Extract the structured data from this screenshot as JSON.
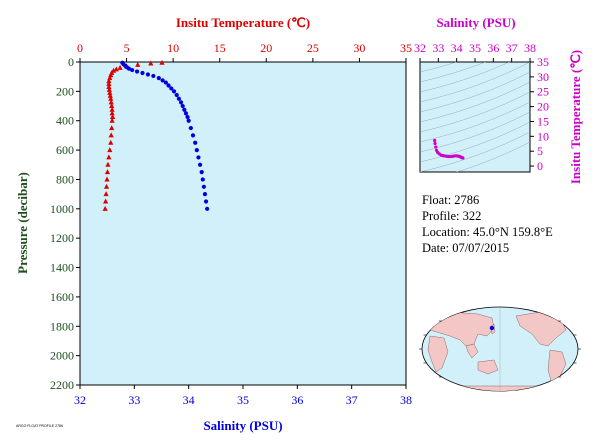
{
  "colors": {
    "temperature": "#dd0000",
    "salinity": "#0000dd",
    "ts_axis": "#cc00cc",
    "plot_bg": "#d2f0fa",
    "pressure_axis": "#1e4d1e"
  },
  "chart_data": [
    {
      "type": "scatter",
      "title": "",
      "ylabel": "Pressure (decibar)",
      "yticks": [
        0,
        200,
        400,
        600,
        800,
        1000,
        1200,
        1400,
        1600,
        1800,
        2000,
        2200
      ],
      "ylim": [
        0,
        2200
      ],
      "y_inverted": true,
      "top_axis": {
        "label": "Insitu Temperature (℃)",
        "range": [
          0,
          35
        ],
        "ticks": [
          0,
          5,
          10,
          15,
          20,
          25,
          30,
          35
        ]
      },
      "bottom_axis": {
        "label": "Salinity (PSU)",
        "range": [
          32,
          38
        ],
        "ticks": [
          32,
          33,
          34,
          35,
          36,
          37,
          38
        ]
      },
      "grid": false,
      "series": [
        {
          "variable": "temperature",
          "marker": "triangle",
          "points": [
            [
              8.8,
              5
            ],
            [
              7.6,
              10
            ],
            [
              6.2,
              20
            ],
            [
              5.0,
              30
            ],
            [
              4.3,
              40
            ],
            [
              3.9,
              50
            ],
            [
              3.6,
              60
            ],
            [
              3.4,
              75
            ],
            [
              3.3,
              90
            ],
            [
              3.2,
              110
            ],
            [
              3.1,
              130
            ],
            [
              3.1,
              150
            ],
            [
              3.1,
              170
            ],
            [
              3.15,
              190
            ],
            [
              3.2,
              210
            ],
            [
              3.25,
              230
            ],
            [
              3.3,
              250
            ],
            [
              3.35,
              275
            ],
            [
              3.4,
              300
            ],
            [
              3.45,
              325
            ],
            [
              3.45,
              350
            ],
            [
              3.5,
              375
            ],
            [
              3.45,
              400
            ],
            [
              3.4,
              450
            ],
            [
              3.35,
              500
            ],
            [
              3.3,
              550
            ],
            [
              3.2,
              600
            ],
            [
              3.1,
              650
            ],
            [
              3.0,
              700
            ],
            [
              2.95,
              750
            ],
            [
              2.9,
              800
            ],
            [
              2.85,
              850
            ],
            [
              2.8,
              900
            ],
            [
              2.75,
              950
            ],
            [
              2.7,
              1000
            ]
          ]
        },
        {
          "variable": "salinity",
          "marker": "circle",
          "points": [
            [
              32.78,
              5
            ],
            [
              32.8,
              15
            ],
            [
              32.83,
              25
            ],
            [
              32.86,
              35
            ],
            [
              32.9,
              45
            ],
            [
              32.96,
              55
            ],
            [
              33.05,
              65
            ],
            [
              33.15,
              75
            ],
            [
              33.25,
              85
            ],
            [
              33.35,
              95
            ],
            [
              33.45,
              110
            ],
            [
              33.52,
              125
            ],
            [
              33.58,
              140
            ],
            [
              33.63,
              160
            ],
            [
              33.68,
              180
            ],
            [
              33.73,
              200
            ],
            [
              33.78,
              225
            ],
            [
              33.82,
              250
            ],
            [
              33.86,
              275
            ],
            [
              33.89,
              300
            ],
            [
              33.92,
              325
            ],
            [
              33.95,
              350
            ],
            [
              33.98,
              375
            ],
            [
              34.0,
              400
            ],
            [
              34.04,
              450
            ],
            [
              34.08,
              500
            ],
            [
              34.12,
              550
            ],
            [
              34.15,
              600
            ],
            [
              34.18,
              650
            ],
            [
              34.21,
              700
            ],
            [
              34.24,
              750
            ],
            [
              34.26,
              800
            ],
            [
              34.28,
              850
            ],
            [
              34.3,
              900
            ],
            [
              34.32,
              950
            ],
            [
              34.34,
              1000
            ]
          ]
        }
      ]
    },
    {
      "type": "scatter",
      "title": "",
      "xlabel": "Salinity (PSU)",
      "ylabel": "Insitu Temperature (℃)",
      "xlim": [
        32,
        38
      ],
      "ylim": [
        -2,
        35
      ],
      "xticks": [
        32,
        33,
        34,
        35,
        36,
        37,
        38
      ],
      "yticks": [
        0,
        5,
        10,
        15,
        20,
        25,
        30,
        35
      ],
      "grid": false,
      "series": [
        {
          "marker": "dot",
          "points": [
            [
              32.8,
              8.6
            ],
            [
              32.82,
              7.6
            ],
            [
              32.86,
              6.4
            ],
            [
              32.9,
              5.3
            ],
            [
              32.96,
              4.6
            ],
            [
              33.05,
              4.1
            ],
            [
              33.15,
              3.7
            ],
            [
              33.25,
              3.5
            ],
            [
              33.35,
              3.4
            ],
            [
              33.45,
              3.3
            ],
            [
              33.55,
              3.2
            ],
            [
              33.65,
              3.2
            ],
            [
              33.75,
              3.25
            ],
            [
              33.85,
              3.35
            ],
            [
              33.92,
              3.45
            ],
            [
              34.0,
              3.45
            ],
            [
              34.08,
              3.35
            ],
            [
              34.15,
              3.25
            ],
            [
              34.2,
              3.1
            ],
            [
              34.25,
              2.95
            ],
            [
              34.3,
              2.8
            ],
            [
              34.34,
              2.7
            ]
          ]
        }
      ]
    }
  ],
  "float_info": {
    "float": "Float:  2786",
    "profile": "Profile:  322",
    "location": "Location:  45.0°N  159.8°E",
    "date": "Date:  07/07/2015"
  },
  "map": {
    "marker_lat": 45.0,
    "marker_lon": 159.8
  },
  "footer_text": "ARGO FLOAT PROFILE 2786"
}
